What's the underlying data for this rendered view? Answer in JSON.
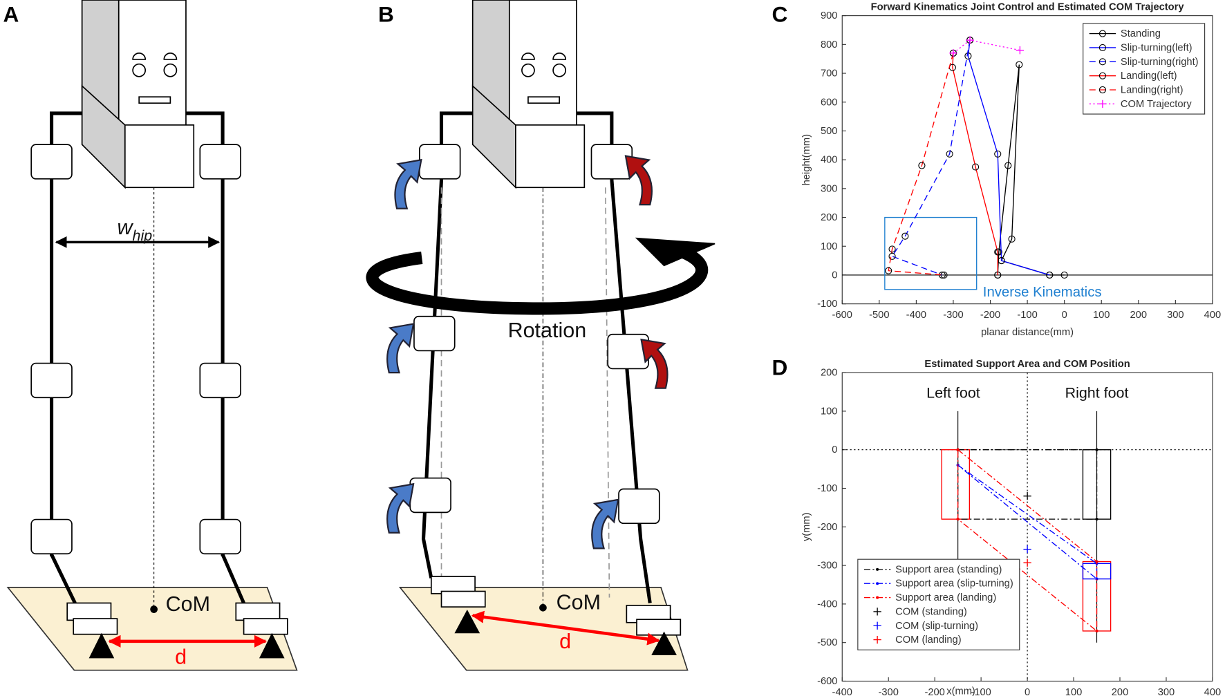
{
  "panels": [
    "A",
    "B",
    "C",
    "D"
  ],
  "diagram_a": {
    "width_label": "w",
    "width_subscript": "hip",
    "com_label": "CoM",
    "distance_label": "d"
  },
  "diagram_b": {
    "rotation_label": "Rotation",
    "com_label": "CoM",
    "distance_label": "d"
  },
  "chart_data": [
    {
      "type": "line",
      "title": "Forward Kinematics Joint Control and Estimated COM Trajectory",
      "x_label": "planar distance(mm)",
      "y_label": "height(mm)",
      "xlim": [
        -600,
        400
      ],
      "ylim": [
        -100,
        900
      ],
      "xticks": [
        -600,
        -500,
        -400,
        -300,
        -200,
        -100,
        0,
        100,
        200,
        300,
        400
      ],
      "yticks": [
        -100,
        0,
        100,
        200,
        300,
        400,
        500,
        600,
        700,
        800,
        900
      ],
      "hline": {
        "y": 0,
        "style": "solid"
      },
      "legend": "upper right",
      "annotation": {
        "text": "Inverse Kinematics",
        "x": -220,
        "y": -55,
        "color": "#1e7fd0",
        "box": {
          "xlim": [
            -485,
            -237
          ],
          "ylim": [
            -50,
            200
          ]
        }
      },
      "series": [
        {
          "name": "Standing",
          "color": "#000000",
          "linestyle": "solid",
          "marker": "o",
          "marker_color": "#000000",
          "x": [
            0,
            -40,
            -170,
            -142,
            -122,
            -152,
            -177,
            -180
          ],
          "values": [
            0,
            0,
            50,
            125,
            730,
            380,
            80,
            0
          ]
        },
        {
          "name": "Slip-turning(left)",
          "color": "#0000ff",
          "linestyle": "solid",
          "marker": "o",
          "marker_color": "#000000",
          "x": [
            -255,
            -260,
            -180,
            -170,
            -40
          ],
          "values": [
            815,
            760,
            420,
            50,
            0
          ]
        },
        {
          "name": "Slip-turning(right)",
          "color": "#0000ff",
          "linestyle": "dashed",
          "marker": "o",
          "marker_color": "#000000",
          "x": [
            -255,
            -310,
            -430,
            -465,
            -330
          ],
          "values": [
            815,
            420,
            135,
            65,
            0
          ]
        },
        {
          "name": "Landing(left)",
          "color": "#ff0000",
          "linestyle": "solid",
          "marker": "o",
          "marker_color": "#000000",
          "x": [
            -300,
            -302,
            -240,
            -180,
            -180
          ],
          "values": [
            770,
            720,
            375,
            80,
            0
          ]
        },
        {
          "name": "Landing(right)",
          "color": "#ff0000",
          "linestyle": "dashed",
          "marker": "o",
          "marker_color": "#000000",
          "x": [
            -300,
            -385,
            -465,
            -475,
            -325
          ],
          "values": [
            770,
            380,
            90,
            15,
            0
          ]
        },
        {
          "name": "COM Trajectory",
          "color": "#ff00ff",
          "linestyle": "dotted",
          "marker": "+",
          "marker_color": "#ff00ff",
          "x": [
            -300,
            -255,
            -120
          ],
          "values": [
            770,
            815,
            780
          ]
        }
      ]
    },
    {
      "type": "line",
      "title": "Estimated Support Area and COM Position",
      "x_label": "x(mm)",
      "y_label": "y(mm)",
      "xlim": [
        -400,
        400
      ],
      "ylim": [
        -600,
        200
      ],
      "xticks": [
        -400,
        -300,
        -200,
        -100,
        0,
        100,
        200,
        300,
        400
      ],
      "yticks": [
        -600,
        -500,
        -400,
        -300,
        -200,
        -100,
        0,
        100,
        200
      ],
      "hline": {
        "y": 0,
        "style": "dotted"
      },
      "vline": {
        "x": 0,
        "style": "dotted"
      },
      "legend": "lower left",
      "annotations": [
        {
          "text": "Left foot",
          "x": -160,
          "y": 135
        },
        {
          "text": "Right foot",
          "x": 150,
          "y": 135
        }
      ],
      "whiskers": [
        {
          "x": -150,
          "y": [
            100,
            -330
          ]
        },
        {
          "x": 150,
          "y": [
            100,
            -500
          ]
        }
      ],
      "foot_boxes": [
        {
          "color": "#000000",
          "xlim": [
            120,
            180
          ],
          "ylim": [
            -180,
            0
          ]
        },
        {
          "color": "#ff0000",
          "xlim": [
            -185,
            -125
          ],
          "ylim": [
            -180,
            0
          ]
        },
        {
          "color": "#ff0000",
          "xlim": [
            120,
            180
          ],
          "ylim": [
            -470,
            -290
          ]
        },
        {
          "color": "#0000ff",
          "xlim": [
            120,
            180
          ],
          "ylim": [
            -335,
            -295
          ]
        }
      ],
      "series": [
        {
          "name": "Support area (standing)",
          "color": "#000000",
          "linestyle": "dashdot",
          "marker": ".",
          "marker_color": "#000000",
          "x": [
            -150,
            150,
            150,
            -150,
            -150
          ],
          "values": [
            0,
            0,
            -180,
            -180,
            0
          ]
        },
        {
          "name": "Support area (slip-turning)",
          "color": "#0000ff",
          "linestyle": "dashdot",
          "marker": ".",
          "marker_color": "#0000ff",
          "x": [
            -150,
            150,
            150,
            -150
          ],
          "values": [
            -40,
            -295,
            -335,
            -40
          ]
        },
        {
          "name": "Support area (landing)",
          "color": "#ff0000",
          "linestyle": "dashdot",
          "marker": ".",
          "marker_color": "#ff0000",
          "x": [
            -150,
            150,
            150,
            -150,
            -150
          ],
          "values": [
            0,
            -290,
            -470,
            -180,
            0
          ]
        },
        {
          "name": "COM (standing)",
          "color": "#000000",
          "linestyle": "none",
          "marker": "+",
          "marker_color": "#000000",
          "x": [
            0
          ],
          "values": [
            -120
          ]
        },
        {
          "name": "COM (slip-turning)",
          "color": "#0000ff",
          "linestyle": "none",
          "marker": "+",
          "marker_color": "#0000ff",
          "x": [
            0
          ],
          "values": [
            -258
          ]
        },
        {
          "name": "COM (landing)",
          "color": "#ff0000",
          "linestyle": "none",
          "marker": "+",
          "marker_color": "#ff0000",
          "x": [
            0
          ],
          "values": [
            -293
          ]
        }
      ]
    }
  ]
}
